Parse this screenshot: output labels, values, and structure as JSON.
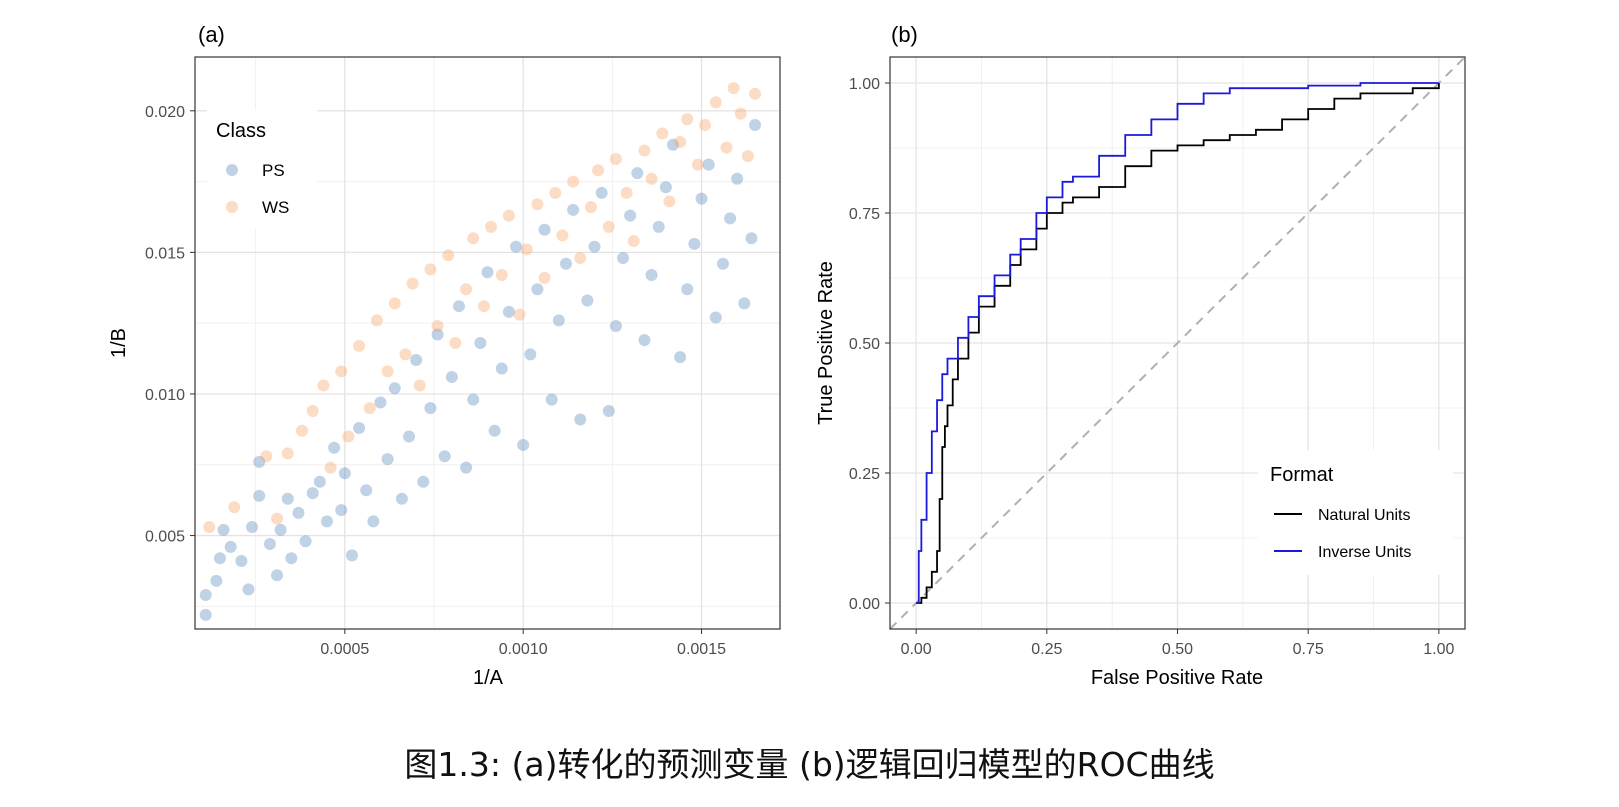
{
  "figure_caption": "图1.3: (a)转化的预测变量   (b)逻辑回归模型的ROC曲线",
  "colors": {
    "ps": "#4a7fb5",
    "ws": "#f59a55",
    "natural": "#000000",
    "inverse": "#1a1adb",
    "diagonal": "#b0b0b0",
    "grid": "#e6e6e6",
    "border": "#333333"
  },
  "chart_data": [
    {
      "type": "scatter",
      "panel_label": "(a)",
      "xlabel": "1/A",
      "ylabel": "1/B",
      "xlim": [
        8e-05,
        0.00172
      ],
      "ylim": [
        0.0017,
        0.0219
      ],
      "x_ticks": [
        0.0005,
        0.001,
        0.0015
      ],
      "x_tick_labels": [
        "0.0005",
        "0.0010",
        "0.0015"
      ],
      "y_ticks": [
        0.005,
        0.01,
        0.015,
        0.02
      ],
      "y_tick_labels": [
        "0.005",
        "0.010",
        "0.015",
        "0.020"
      ],
      "grid": true,
      "legend_title": "Class",
      "legend_position": "top-left",
      "series": [
        {
          "name": "PS",
          "color": "#4a7fb5",
          "points": [
            [
              0.00011,
              0.0022
            ],
            [
              0.00011,
              0.0029
            ],
            [
              0.00014,
              0.0034
            ],
            [
              0.00015,
              0.0042
            ],
            [
              0.00016,
              0.0052
            ],
            [
              0.00018,
              0.0046
            ],
            [
              0.00021,
              0.0041
            ],
            [
              0.00023,
              0.0031
            ],
            [
              0.00024,
              0.0053
            ],
            [
              0.00026,
              0.0064
            ],
            [
              0.00026,
              0.0076
            ],
            [
              0.00029,
              0.0047
            ],
            [
              0.00031,
              0.0036
            ],
            [
              0.00032,
              0.0052
            ],
            [
              0.00034,
              0.0063
            ],
            [
              0.00035,
              0.0042
            ],
            [
              0.00037,
              0.0058
            ],
            [
              0.00039,
              0.0048
            ],
            [
              0.00041,
              0.0065
            ],
            [
              0.00043,
              0.0069
            ],
            [
              0.00045,
              0.0055
            ],
            [
              0.00047,
              0.0081
            ],
            [
              0.00049,
              0.0059
            ],
            [
              0.0005,
              0.0072
            ],
            [
              0.00052,
              0.0043
            ],
            [
              0.00054,
              0.0088
            ],
            [
              0.00056,
              0.0066
            ],
            [
              0.00058,
              0.0055
            ],
            [
              0.0006,
              0.0097
            ],
            [
              0.00062,
              0.0077
            ],
            [
              0.00064,
              0.0102
            ],
            [
              0.00066,
              0.0063
            ],
            [
              0.00068,
              0.0085
            ],
            [
              0.0007,
              0.0112
            ],
            [
              0.00072,
              0.0069
            ],
            [
              0.00074,
              0.0095
            ],
            [
              0.00076,
              0.0121
            ],
            [
              0.00078,
              0.0078
            ],
            [
              0.0008,
              0.0106
            ],
            [
              0.00082,
              0.0131
            ],
            [
              0.00084,
              0.0074
            ],
            [
              0.00086,
              0.0098
            ],
            [
              0.00088,
              0.0118
            ],
            [
              0.0009,
              0.0143
            ],
            [
              0.00092,
              0.0087
            ],
            [
              0.00094,
              0.0109
            ],
            [
              0.00096,
              0.0129
            ],
            [
              0.00098,
              0.0152
            ],
            [
              0.001,
              0.0082
            ],
            [
              0.00102,
              0.0114
            ],
            [
              0.00104,
              0.0137
            ],
            [
              0.00106,
              0.0158
            ],
            [
              0.00108,
              0.0098
            ],
            [
              0.0011,
              0.0126
            ],
            [
              0.00112,
              0.0146
            ],
            [
              0.00114,
              0.0165
            ],
            [
              0.00116,
              0.0091
            ],
            [
              0.00118,
              0.0133
            ],
            [
              0.0012,
              0.0152
            ],
            [
              0.00122,
              0.0171
            ],
            [
              0.00124,
              0.0094
            ],
            [
              0.00126,
              0.0124
            ],
            [
              0.00128,
              0.0148
            ],
            [
              0.0013,
              0.0163
            ],
            [
              0.00132,
              0.0178
            ],
            [
              0.00134,
              0.0119
            ],
            [
              0.00136,
              0.0142
            ],
            [
              0.00138,
              0.0159
            ],
            [
              0.0014,
              0.0173
            ],
            [
              0.00142,
              0.0188
            ],
            [
              0.00144,
              0.0113
            ],
            [
              0.00146,
              0.0137
            ],
            [
              0.00148,
              0.0153
            ],
            [
              0.0015,
              0.0169
            ],
            [
              0.00152,
              0.0181
            ],
            [
              0.00154,
              0.0127
            ],
            [
              0.00156,
              0.0146
            ],
            [
              0.00158,
              0.0162
            ],
            [
              0.0016,
              0.0176
            ],
            [
              0.00162,
              0.0132
            ],
            [
              0.00164,
              0.0155
            ],
            [
              0.00165,
              0.0195
            ]
          ]
        },
        {
          "name": "WS",
          "color": "#f59a55",
          "points": [
            [
              0.00012,
              0.0053
            ],
            [
              0.00019,
              0.006
            ],
            [
              0.00028,
              0.0078
            ],
            [
              0.00031,
              0.0056
            ],
            [
              0.00034,
              0.0079
            ],
            [
              0.00038,
              0.0087
            ],
            [
              0.00041,
              0.0094
            ],
            [
              0.00044,
              0.0103
            ],
            [
              0.00046,
              0.0074
            ],
            [
              0.00049,
              0.0108
            ],
            [
              0.00051,
              0.0085
            ],
            [
              0.00054,
              0.0117
            ],
            [
              0.00057,
              0.0095
            ],
            [
              0.00059,
              0.0126
            ],
            [
              0.00062,
              0.0108
            ],
            [
              0.00064,
              0.0132
            ],
            [
              0.00067,
              0.0114
            ],
            [
              0.00069,
              0.0139
            ],
            [
              0.00071,
              0.0103
            ],
            [
              0.00074,
              0.0144
            ],
            [
              0.00076,
              0.0124
            ],
            [
              0.00079,
              0.0149
            ],
            [
              0.00081,
              0.0118
            ],
            [
              0.00084,
              0.0137
            ],
            [
              0.00086,
              0.0155
            ],
            [
              0.00089,
              0.0131
            ],
            [
              0.00091,
              0.0159
            ],
            [
              0.00094,
              0.0142
            ],
            [
              0.00096,
              0.0163
            ],
            [
              0.00099,
              0.0128
            ],
            [
              0.00101,
              0.0151
            ],
            [
              0.00104,
              0.0167
            ],
            [
              0.00106,
              0.0141
            ],
            [
              0.00109,
              0.0171
            ],
            [
              0.00111,
              0.0156
            ],
            [
              0.00114,
              0.0175
            ],
            [
              0.00116,
              0.0148
            ],
            [
              0.00119,
              0.0166
            ],
            [
              0.00121,
              0.0179
            ],
            [
              0.00124,
              0.0159
            ],
            [
              0.00126,
              0.0183
            ],
            [
              0.00129,
              0.0171
            ],
            [
              0.00131,
              0.0154
            ],
            [
              0.00134,
              0.0186
            ],
            [
              0.00136,
              0.0176
            ],
            [
              0.00139,
              0.0192
            ],
            [
              0.00141,
              0.0168
            ],
            [
              0.00144,
              0.0189
            ],
            [
              0.00146,
              0.0197
            ],
            [
              0.00149,
              0.0181
            ],
            [
              0.00151,
              0.0195
            ],
            [
              0.00154,
              0.0203
            ],
            [
              0.00157,
              0.0187
            ],
            [
              0.00159,
              0.0208
            ],
            [
              0.00161,
              0.0199
            ],
            [
              0.00163,
              0.0184
            ],
            [
              0.00165,
              0.0206
            ]
          ]
        }
      ]
    },
    {
      "type": "line",
      "panel_label": "(b)",
      "xlabel": "False Positive Rate",
      "ylabel": "True Positive Rate",
      "xlim": [
        -0.05,
        1.05
      ],
      "ylim": [
        -0.05,
        1.05
      ],
      "x_ticks": [
        0,
        0.25,
        0.5,
        0.75,
        1
      ],
      "x_tick_labels": [
        "0.00",
        "0.25",
        "0.50",
        "0.75",
        "1.00"
      ],
      "y_ticks": [
        0,
        0.25,
        0.5,
        0.75,
        1
      ],
      "y_tick_labels": [
        "0.00",
        "0.25",
        "0.50",
        "0.75",
        "1.00"
      ],
      "grid": true,
      "legend_title": "Format",
      "legend_position": "bottom-right",
      "series": [
        {
          "name": "Natural Units",
          "color": "#000000",
          "x": [
            0,
            0.01,
            0.02,
            0.03,
            0.04,
            0.045,
            0.05,
            0.055,
            0.06,
            0.07,
            0.08,
            0.1,
            0.12,
            0.15,
            0.18,
            0.2,
            0.23,
            0.25,
            0.28,
            0.3,
            0.35,
            0.4,
            0.45,
            0.5,
            0.55,
            0.6,
            0.65,
            0.7,
            0.75,
            0.8,
            0.85,
            0.9,
            0.95,
            1.0
          ],
          "y": [
            0,
            0.01,
            0.03,
            0.06,
            0.1,
            0.2,
            0.3,
            0.34,
            0.38,
            0.43,
            0.47,
            0.52,
            0.57,
            0.61,
            0.65,
            0.68,
            0.72,
            0.75,
            0.77,
            0.78,
            0.8,
            0.84,
            0.87,
            0.88,
            0.89,
            0.9,
            0.91,
            0.93,
            0.95,
            0.97,
            0.98,
            0.98,
            0.99,
            1.0
          ]
        },
        {
          "name": "Inverse Units",
          "color": "#1a1adb",
          "x": [
            0,
            0.005,
            0.01,
            0.02,
            0.03,
            0.04,
            0.05,
            0.06,
            0.08,
            0.1,
            0.12,
            0.15,
            0.18,
            0.2,
            0.23,
            0.25,
            0.28,
            0.3,
            0.35,
            0.4,
            0.45,
            0.5,
            0.55,
            0.6,
            0.65,
            0.7,
            0.75,
            0.8,
            0.85,
            0.9,
            0.95,
            1.0
          ],
          "y": [
            0,
            0.1,
            0.16,
            0.25,
            0.33,
            0.39,
            0.44,
            0.47,
            0.51,
            0.55,
            0.59,
            0.63,
            0.67,
            0.7,
            0.75,
            0.78,
            0.81,
            0.82,
            0.86,
            0.9,
            0.93,
            0.96,
            0.98,
            0.99,
            0.99,
            0.99,
            0.995,
            0.995,
            1.0,
            1.0,
            1.0,
            1.0
          ]
        }
      ]
    }
  ]
}
